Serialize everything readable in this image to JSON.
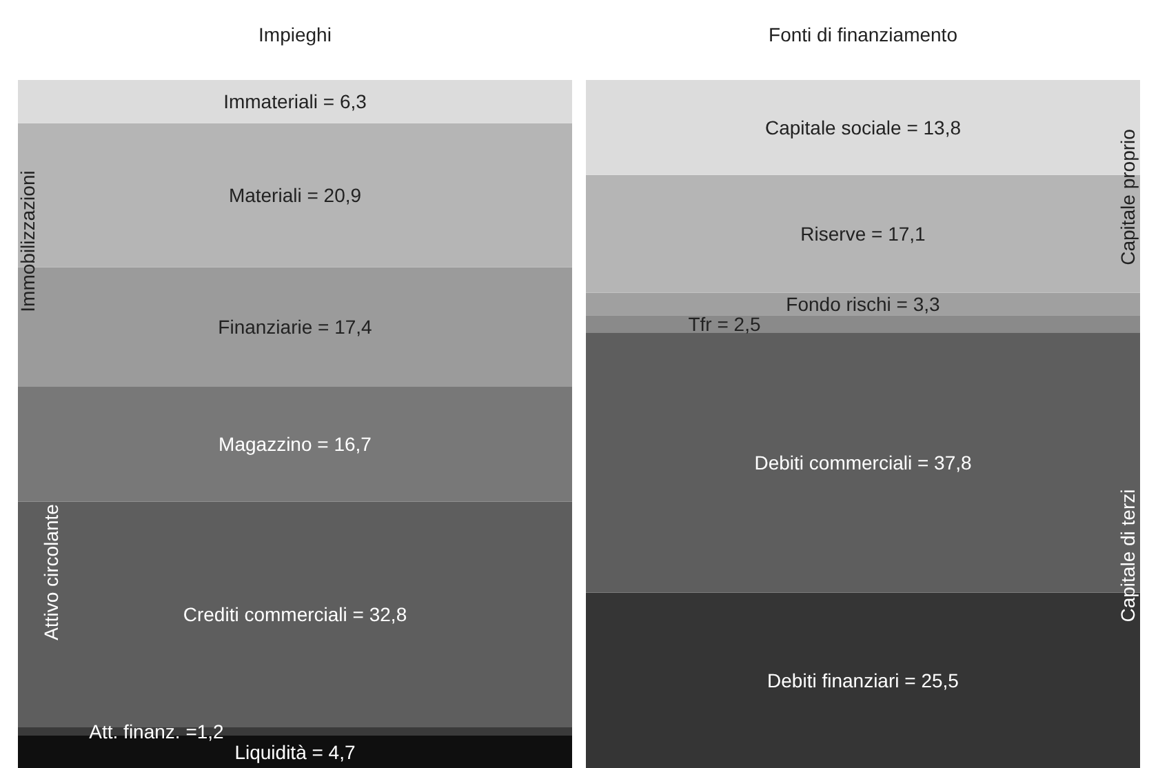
{
  "chart_data": {
    "type": "bar",
    "stacked": true,
    "categories": [
      "Impieghi",
      "Fonti di finanziamento"
    ],
    "series": [
      {
        "color": "#0f0f0f",
        "values": [
          4.7,
          null
        ],
        "value_labels": [
          "Liquidità = 4,7",
          null
        ]
      },
      {
        "color": "#3a3a3a",
        "values": [
          1.2,
          null
        ],
        "value_labels": [
          "Att. finanz. =1,2",
          null
        ]
      },
      {
        "color": "#5e5e5e",
        "values": [
          32.8,
          null
        ],
        "value_labels": [
          "Crediti commerciali = 32,8",
          null
        ]
      },
      {
        "color": "#787878",
        "values": [
          16.7,
          null
        ],
        "value_labels": [
          "Magazzino = 16,7",
          null
        ]
      },
      {
        "color": "#9b9b9b",
        "values": [
          17.4,
          null
        ],
        "value_labels": [
          "Finanziarie = 17,4",
          null
        ]
      },
      {
        "color": "#b5b5b5",
        "values": [
          20.9,
          null
        ],
        "value_labels": [
          "Materiali = 20,9",
          null
        ]
      },
      {
        "color": "#dcdcdc",
        "values": [
          6.3,
          null
        ],
        "value_labels": [
          "Immateriali = 6,3",
          null
        ]
      },
      {
        "color": "#353535",
        "values": [
          null,
          25.5
        ],
        "value_labels": [
          null,
          "Debiti finanziari = 25,5"
        ]
      },
      {
        "color": "#5e5e5e",
        "values": [
          null,
          37.8
        ],
        "value_labels": [
          null,
          "Debiti commerciali = 37,8"
        ]
      },
      {
        "color": "#8a8a8a",
        "values": [
          null,
          2.5
        ],
        "value_labels": [
          null,
          "Tfr = 2,5"
        ]
      },
      {
        "color": "#a0a0a0",
        "values": [
          null,
          3.3
        ],
        "value_labels": [
          null,
          "Fondo rischi = 3,3"
        ]
      },
      {
        "color": "#b5b5b5",
        "values": [
          null,
          17.1
        ],
        "value_labels": [
          null,
          "Riserve = 17,1"
        ]
      },
      {
        "color": "#dcdcdc",
        "values": [
          null,
          13.8
        ],
        "value_labels": [
          null,
          "Capitale sociale = 13,8"
        ]
      }
    ],
    "annotations": [
      "Immobilizzazioni",
      "Attivo circolante",
      "Capitale proprio",
      "Capitale di terzi"
    ]
  }
}
